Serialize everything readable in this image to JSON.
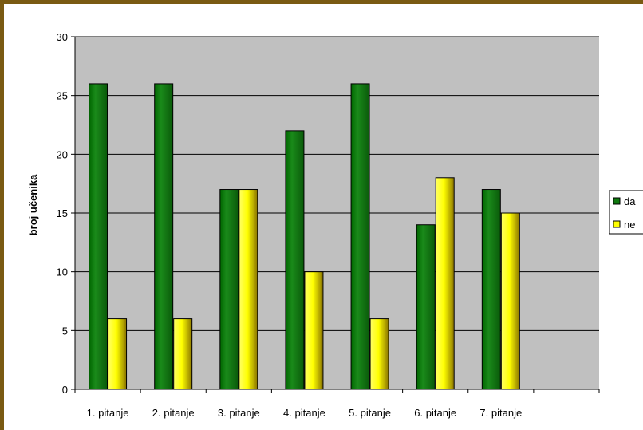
{
  "chart_data": {
    "type": "bar",
    "title": "",
    "xlabel": "",
    "ylabel": "broj učenika",
    "ylim": [
      0,
      30
    ],
    "yticks": [
      0,
      5,
      10,
      15,
      20,
      25,
      30
    ],
    "grid": true,
    "legend_position": "right",
    "categories": [
      "1. pitanje",
      "2. pitanje",
      "3. pitanje",
      "4. pitanje",
      "5. pitanje",
      "6. pitanje",
      "7. pitanje",
      ""
    ],
    "series": [
      {
        "name": "da",
        "values": [
          26,
          26,
          17,
          22,
          26,
          14,
          17,
          null
        ],
        "color": "#0f7a0f"
      },
      {
        "name": "ne",
        "values": [
          6,
          6,
          17,
          10,
          6,
          18,
          15,
          null
        ],
        "color": "#ffff00"
      }
    ]
  },
  "colors": {
    "plot_background": "#c0c0c0",
    "frame_border": "#7a5a12"
  }
}
